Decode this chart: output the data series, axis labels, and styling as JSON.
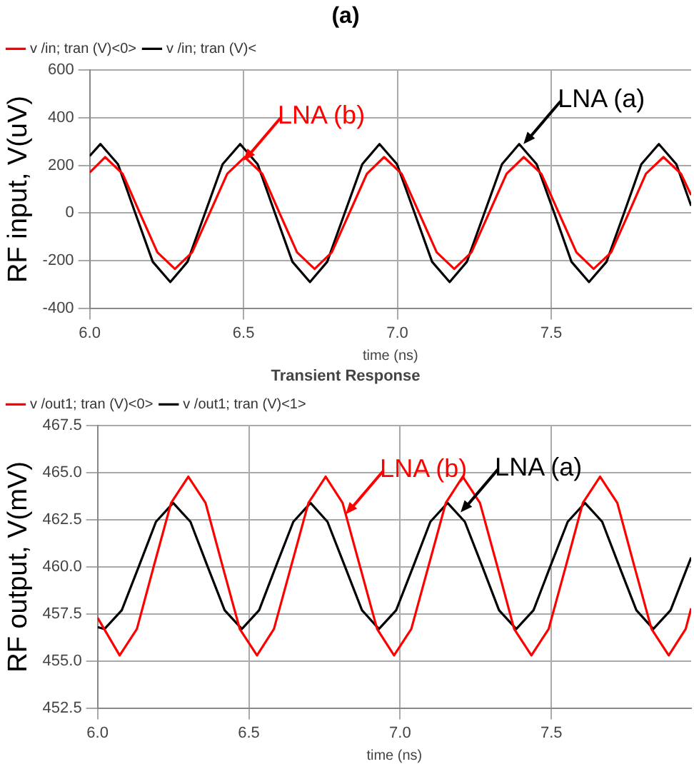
{
  "chart_data": [
    {
      "type": "line",
      "title": "(a)",
      "xlabel": "time (ns)",
      "ylabel": "RF input, V(uV)",
      "xlim": [
        6.0,
        7.955
      ],
      "xticks": [
        {
          "value": 6,
          "label": "6.0"
        },
        {
          "value": 6.5,
          "label": "6.5"
        },
        {
          "value": 7,
          "label": "7.0"
        },
        {
          "value": 7.5,
          "label": "7.5"
        }
      ],
      "ylim": [
        -400,
        600
      ],
      "yticks": [
        -400,
        -200,
        0,
        200,
        400,
        600
      ],
      "grid": true,
      "legend": "top left",
      "marker": "none",
      "line_style": "solid",
      "series": [
        {
          "name": "v /in; tran (V)<0>",
          "color": "#ff0000",
          "x": [
            6.0,
            6.05,
            6.107,
            6.163,
            6.22,
            6.277,
            6.333,
            6.39,
            6.447,
            6.504,
            6.561,
            6.617,
            6.674,
            6.731,
            6.787,
            6.844,
            6.901,
            6.957,
            7.014,
            7.071,
            7.128,
            7.185,
            7.241,
            7.298,
            7.355,
            7.411,
            7.468,
            7.525,
            7.582,
            7.638,
            7.695,
            7.752,
            7.808,
            7.865,
            7.922,
            7.955
          ],
          "values": [
            170,
            235,
            165,
            0,
            -165,
            -235,
            -165,
            0,
            165,
            235,
            165,
            0,
            -165,
            -235,
            -165,
            0,
            165,
            235,
            165,
            0,
            -165,
            -235,
            -165,
            0,
            165,
            235,
            165,
            0,
            -165,
            -235,
            -165,
            0,
            165,
            235,
            165,
            75
          ]
        },
        {
          "name": "v /in; tran (V)<",
          "color": "#000000",
          "x": [
            6.0,
            6.035,
            6.092,
            6.148,
            6.205,
            6.262,
            6.318,
            6.375,
            6.432,
            6.489,
            6.546,
            6.602,
            6.659,
            6.716,
            6.772,
            6.829,
            6.886,
            6.942,
            6.999,
            7.056,
            7.113,
            7.17,
            7.226,
            7.283,
            7.34,
            7.396,
            7.453,
            7.51,
            7.566,
            7.623,
            7.68,
            7.737,
            7.793,
            7.85,
            7.907,
            7.955
          ],
          "values": [
            240,
            290,
            205,
            0,
            -205,
            -290,
            -205,
            0,
            205,
            290,
            205,
            0,
            -205,
            -290,
            -205,
            0,
            205,
            290,
            205,
            0,
            -205,
            -290,
            -205,
            0,
            205,
            290,
            205,
            0,
            -205,
            -290,
            -205,
            0,
            205,
            290,
            205,
            30
          ]
        }
      ],
      "annotations": [
        {
          "text": "LNA (b)",
          "x": 6.5,
          "y": 220
        },
        {
          "text": "LNA (a)",
          "x": 7.41,
          "y": 290
        }
      ]
    },
    {
      "type": "line",
      "title": "Transient Response",
      "xlabel": "time (ns)",
      "ylabel": "RF output, V(mV)",
      "xlim": [
        6.0,
        7.962
      ],
      "xticks": [
        {
          "value": 6,
          "label": "6.0"
        },
        {
          "value": 6.5,
          "label": "6.5"
        },
        {
          "value": 7,
          "label": "7.0"
        },
        {
          "value": 7.5,
          "label": "7.5"
        }
      ],
      "ylim": [
        452.5,
        467.5
      ],
      "yticks": [
        452.5,
        {
          "value": 455,
          "label": "455.0"
        },
        457.5,
        {
          "value": 460,
          "label": "460.0"
        },
        462.5,
        {
          "value": 465,
          "label": "465.0"
        },
        467.5
      ],
      "grid": true,
      "legend": "top left",
      "marker": "none",
      "line_style": "solid",
      "series": [
        {
          "name": "v /out1; tran (V)<0>",
          "color": "#ff0000",
          "x": [
            6.0,
            6.073,
            6.13,
            6.186,
            6.243,
            6.3,
            6.357,
            6.413,
            6.47,
            6.527,
            6.583,
            6.64,
            6.697,
            6.754,
            6.81,
            6.867,
            6.924,
            6.98,
            7.037,
            7.094,
            7.151,
            7.207,
            7.264,
            7.321,
            7.377,
            7.434,
            7.491,
            7.548,
            7.604,
            7.661,
            7.718,
            7.774,
            7.831,
            7.888,
            7.944,
            7.962
          ],
          "values": [
            457.3,
            455.3,
            456.7,
            460.05,
            463.4,
            464.8,
            463.4,
            460.05,
            456.7,
            455.3,
            456.7,
            460.05,
            463.4,
            464.8,
            463.4,
            460.05,
            456.7,
            455.3,
            456.7,
            460.05,
            463.4,
            464.8,
            463.4,
            460.05,
            456.7,
            455.3,
            456.7,
            460.05,
            463.4,
            464.8,
            463.4,
            460.05,
            456.7,
            455.3,
            456.7,
            457.8
          ]
        },
        {
          "name": "v /out1; tran (V)<1>",
          "color": "#000000",
          "x": [
            6.0,
            6.023,
            6.08,
            6.137,
            6.193,
            6.25,
            6.307,
            6.363,
            6.42,
            6.477,
            6.534,
            6.59,
            6.647,
            6.704,
            6.76,
            6.817,
            6.874,
            6.93,
            6.987,
            7.044,
            7.1,
            7.157,
            7.214,
            7.271,
            7.327,
            7.384,
            7.441,
            7.497,
            7.554,
            7.611,
            7.668,
            7.724,
            7.781,
            7.837,
            7.894,
            7.951,
            7.962
          ],
          "values": [
            456.8,
            456.7,
            457.7,
            460.05,
            462.4,
            463.4,
            462.4,
            460.05,
            457.7,
            456.7,
            457.7,
            460.05,
            462.4,
            463.4,
            462.4,
            460.05,
            457.7,
            456.7,
            457.7,
            460.05,
            462.4,
            463.4,
            462.4,
            460.05,
            457.7,
            456.7,
            457.7,
            460.05,
            462.4,
            463.4,
            462.4,
            460.05,
            457.7,
            456.7,
            457.7,
            460.05,
            460.5
          ]
        }
      ],
      "annotations": [
        {
          "text": "LNA (b)",
          "x": 6.82,
          "y": 462.8
        },
        {
          "text": "LNA (a)",
          "x": 7.2,
          "y": 462.9
        }
      ]
    }
  ]
}
